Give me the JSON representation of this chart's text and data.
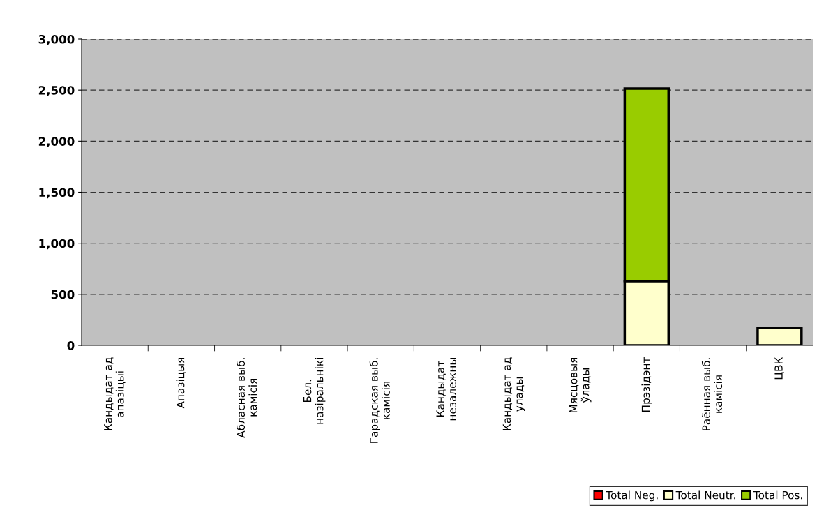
{
  "chart_data": {
    "type": "bar",
    "stacked": true,
    "categories": [
      "Кандыдат ад\nапазіцыі",
      "Апазіцыя",
      "Абласная выб.\nкамісія",
      "Бел.\nназіральнікі",
      "Гарадская выб.\nкамісія",
      "Кандыдат\nнезалежны",
      "Кандыдат ад\nулады",
      "Мясцовыя\nўлады",
      "Прэзідэнт",
      "Раённая выб.\nкамісія",
      "ЦВК"
    ],
    "series": [
      {
        "name": "Total Neg.",
        "color": "#ff0000",
        "values": [
          0,
          0,
          0,
          0,
          0,
          0,
          0,
          0,
          0,
          0,
          0
        ]
      },
      {
        "name": "Total Neutr.",
        "color": "#ffffcc",
        "values": [
          0,
          0,
          0,
          0,
          0,
          0,
          0,
          0,
          631,
          0,
          171
        ]
      },
      {
        "name": "Total Pos.",
        "color": "#99cc00",
        "values": [
          0,
          0,
          0,
          0,
          0,
          0,
          0,
          0,
          1884,
          0,
          0
        ]
      }
    ],
    "ylim": [
      0,
      3000
    ],
    "yticks": [
      0,
      {
        "value": 500,
        "label": "500"
      },
      {
        "value": 1000,
        "label": "1,000"
      },
      {
        "value": 1500,
        "label": "1,500"
      },
      {
        "value": 2000,
        "label": "2,000"
      },
      {
        "value": 2500,
        "label": "2,500"
      },
      {
        "value": 3000,
        "label": "3,000"
      }
    ],
    "grid": "y",
    "legend": "bottom right"
  }
}
